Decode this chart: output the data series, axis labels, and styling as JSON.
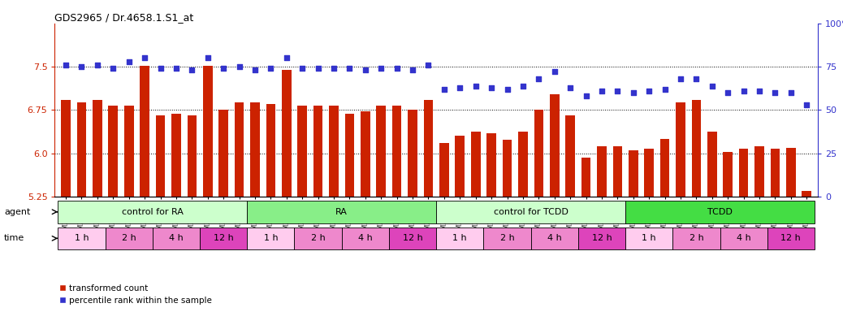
{
  "title": "GDS2965 / Dr.4658.1.S1_at",
  "samples": [
    "GSM228874",
    "GSM228875",
    "GSM228876",
    "GSM228880",
    "GSM228881",
    "GSM228882",
    "GSM228886",
    "GSM228887",
    "GSM228888",
    "GSM228892",
    "GSM228893",
    "GSM228894",
    "GSM228871",
    "GSM228872",
    "GSM228873",
    "GSM228877",
    "GSM228878",
    "GSM228879",
    "GSM228883",
    "GSM228884",
    "GSM228885",
    "GSM228889",
    "GSM228890",
    "GSM228891",
    "GSM228898",
    "GSM228899",
    "GSM228900",
    "GSM228905",
    "GSM228906",
    "GSM228907",
    "GSM228911",
    "GSM228912",
    "GSM228913",
    "GSM228917",
    "GSM228918",
    "GSM228919",
    "GSM228895",
    "GSM228896",
    "GSM228897",
    "GSM228901",
    "GSM228903",
    "GSM228904",
    "GSM228908",
    "GSM228909",
    "GSM228910",
    "GSM228914",
    "GSM228915",
    "GSM228916"
  ],
  "bar_values": [
    6.93,
    6.88,
    6.93,
    6.83,
    6.82,
    7.52,
    6.65,
    6.68,
    6.65,
    7.52,
    6.75,
    6.88,
    6.88,
    6.85,
    7.45,
    6.83,
    6.83,
    6.83,
    6.68,
    6.73,
    6.83,
    6.83,
    6.75,
    6.93,
    6.18,
    6.3,
    6.38,
    6.35,
    6.23,
    6.38,
    6.75,
    7.02,
    6.65,
    5.92,
    6.12,
    6.12,
    6.05,
    6.08,
    6.25,
    6.88,
    6.93,
    6.38,
    6.03,
    6.08,
    6.12,
    6.08,
    6.1,
    5.35
  ],
  "percentile_values": [
    76,
    75,
    76,
    74,
    78,
    80,
    74,
    74,
    73,
    80,
    74,
    75,
    73,
    74,
    80,
    74,
    74,
    74,
    74,
    73,
    74,
    74,
    73,
    76,
    62,
    63,
    64,
    63,
    62,
    64,
    68,
    72,
    63,
    58,
    61,
    61,
    60,
    61,
    62,
    68,
    68,
    64,
    60,
    61,
    61,
    60,
    60,
    53
  ],
  "ylim_left": [
    5.25,
    8.25
  ],
  "ylim_right": [
    0,
    100
  ],
  "yticks_left": [
    5.25,
    6.0,
    6.75,
    7.5
  ],
  "yticks_right": [
    0,
    25,
    50,
    75,
    100
  ],
  "bar_color": "#CC2200",
  "dot_color": "#3333CC",
  "agent_groups": [
    {
      "label": "control for RA",
      "start": 0,
      "end": 12,
      "color": "#CCFFCC"
    },
    {
      "label": "RA",
      "start": 12,
      "end": 24,
      "color": "#88EE88"
    },
    {
      "label": "control for TCDD",
      "start": 24,
      "end": 36,
      "color": "#CCFFCC"
    },
    {
      "label": "TCDD",
      "start": 36,
      "end": 48,
      "color": "#44DD44"
    }
  ],
  "time_colors": {
    "1 h": "#FFCCEE",
    "2 h": "#EE88CC",
    "4 h": "#EE88CC",
    "12 h": "#DD44BB"
  },
  "time_labels": [
    "1 h",
    "2 h",
    "4 h",
    "12 h",
    "1 h",
    "2 h",
    "4 h",
    "12 h",
    "1 h",
    "2 h",
    "4 h",
    "12 h",
    "1 h",
    "2 h",
    "4 h",
    "12 h"
  ],
  "samples_per_time": 3,
  "bg_color": "#FFFFFF"
}
